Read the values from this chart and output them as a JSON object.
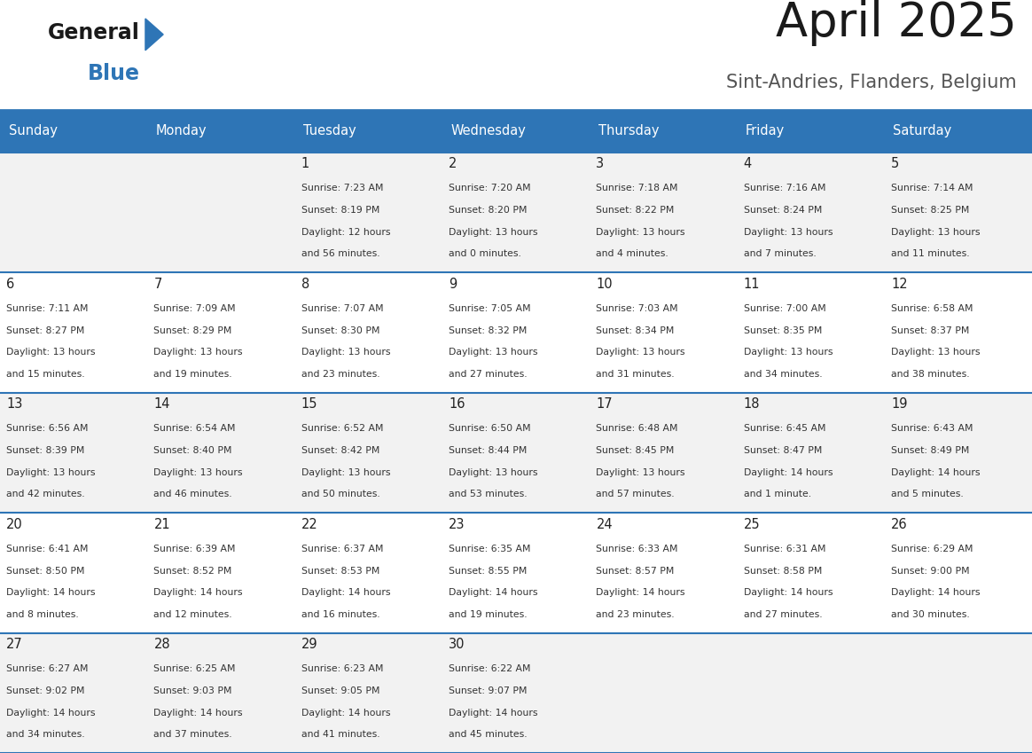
{
  "title": "April 2025",
  "subtitle": "Sint-Andries, Flanders, Belgium",
  "header_bg": "#2E75B6",
  "header_text": "#FFFFFF",
  "cell_bg_odd": "#F2F2F2",
  "cell_bg_even": "#FFFFFF",
  "border_color": "#2E75B6",
  "text_color": "#333333",
  "day_num_color": "#222222",
  "day_headers": [
    "Sunday",
    "Monday",
    "Tuesday",
    "Wednesday",
    "Thursday",
    "Friday",
    "Saturday"
  ],
  "weeks": [
    [
      {
        "day": "",
        "info": ""
      },
      {
        "day": "",
        "info": ""
      },
      {
        "day": "1",
        "sunrise": "Sunrise: 7:23 AM",
        "sunset": "Sunset: 8:19 PM",
        "daylight": "Daylight: 12 hours",
        "daylight2": "and 56 minutes."
      },
      {
        "day": "2",
        "sunrise": "Sunrise: 7:20 AM",
        "sunset": "Sunset: 8:20 PM",
        "daylight": "Daylight: 13 hours",
        "daylight2": "and 0 minutes."
      },
      {
        "day": "3",
        "sunrise": "Sunrise: 7:18 AM",
        "sunset": "Sunset: 8:22 PM",
        "daylight": "Daylight: 13 hours",
        "daylight2": "and 4 minutes."
      },
      {
        "day": "4",
        "sunrise": "Sunrise: 7:16 AM",
        "sunset": "Sunset: 8:24 PM",
        "daylight": "Daylight: 13 hours",
        "daylight2": "and 7 minutes."
      },
      {
        "day": "5",
        "sunrise": "Sunrise: 7:14 AM",
        "sunset": "Sunset: 8:25 PM",
        "daylight": "Daylight: 13 hours",
        "daylight2": "and 11 minutes."
      }
    ],
    [
      {
        "day": "6",
        "sunrise": "Sunrise: 7:11 AM",
        "sunset": "Sunset: 8:27 PM",
        "daylight": "Daylight: 13 hours",
        "daylight2": "and 15 minutes."
      },
      {
        "day": "7",
        "sunrise": "Sunrise: 7:09 AM",
        "sunset": "Sunset: 8:29 PM",
        "daylight": "Daylight: 13 hours",
        "daylight2": "and 19 minutes."
      },
      {
        "day": "8",
        "sunrise": "Sunrise: 7:07 AM",
        "sunset": "Sunset: 8:30 PM",
        "daylight": "Daylight: 13 hours",
        "daylight2": "and 23 minutes."
      },
      {
        "day": "9",
        "sunrise": "Sunrise: 7:05 AM",
        "sunset": "Sunset: 8:32 PM",
        "daylight": "Daylight: 13 hours",
        "daylight2": "and 27 minutes."
      },
      {
        "day": "10",
        "sunrise": "Sunrise: 7:03 AM",
        "sunset": "Sunset: 8:34 PM",
        "daylight": "Daylight: 13 hours",
        "daylight2": "and 31 minutes."
      },
      {
        "day": "11",
        "sunrise": "Sunrise: 7:00 AM",
        "sunset": "Sunset: 8:35 PM",
        "daylight": "Daylight: 13 hours",
        "daylight2": "and 34 minutes."
      },
      {
        "day": "12",
        "sunrise": "Sunrise: 6:58 AM",
        "sunset": "Sunset: 8:37 PM",
        "daylight": "Daylight: 13 hours",
        "daylight2": "and 38 minutes."
      }
    ],
    [
      {
        "day": "13",
        "sunrise": "Sunrise: 6:56 AM",
        "sunset": "Sunset: 8:39 PM",
        "daylight": "Daylight: 13 hours",
        "daylight2": "and 42 minutes."
      },
      {
        "day": "14",
        "sunrise": "Sunrise: 6:54 AM",
        "sunset": "Sunset: 8:40 PM",
        "daylight": "Daylight: 13 hours",
        "daylight2": "and 46 minutes."
      },
      {
        "day": "15",
        "sunrise": "Sunrise: 6:52 AM",
        "sunset": "Sunset: 8:42 PM",
        "daylight": "Daylight: 13 hours",
        "daylight2": "and 50 minutes."
      },
      {
        "day": "16",
        "sunrise": "Sunrise: 6:50 AM",
        "sunset": "Sunset: 8:44 PM",
        "daylight": "Daylight: 13 hours",
        "daylight2": "and 53 minutes."
      },
      {
        "day": "17",
        "sunrise": "Sunrise: 6:48 AM",
        "sunset": "Sunset: 8:45 PM",
        "daylight": "Daylight: 13 hours",
        "daylight2": "and 57 minutes."
      },
      {
        "day": "18",
        "sunrise": "Sunrise: 6:45 AM",
        "sunset": "Sunset: 8:47 PM",
        "daylight": "Daylight: 14 hours",
        "daylight2": "and 1 minute."
      },
      {
        "day": "19",
        "sunrise": "Sunrise: 6:43 AM",
        "sunset": "Sunset: 8:49 PM",
        "daylight": "Daylight: 14 hours",
        "daylight2": "and 5 minutes."
      }
    ],
    [
      {
        "day": "20",
        "sunrise": "Sunrise: 6:41 AM",
        "sunset": "Sunset: 8:50 PM",
        "daylight": "Daylight: 14 hours",
        "daylight2": "and 8 minutes."
      },
      {
        "day": "21",
        "sunrise": "Sunrise: 6:39 AM",
        "sunset": "Sunset: 8:52 PM",
        "daylight": "Daylight: 14 hours",
        "daylight2": "and 12 minutes."
      },
      {
        "day": "22",
        "sunrise": "Sunrise: 6:37 AM",
        "sunset": "Sunset: 8:53 PM",
        "daylight": "Daylight: 14 hours",
        "daylight2": "and 16 minutes."
      },
      {
        "day": "23",
        "sunrise": "Sunrise: 6:35 AM",
        "sunset": "Sunset: 8:55 PM",
        "daylight": "Daylight: 14 hours",
        "daylight2": "and 19 minutes."
      },
      {
        "day": "24",
        "sunrise": "Sunrise: 6:33 AM",
        "sunset": "Sunset: 8:57 PM",
        "daylight": "Daylight: 14 hours",
        "daylight2": "and 23 minutes."
      },
      {
        "day": "25",
        "sunrise": "Sunrise: 6:31 AM",
        "sunset": "Sunset: 8:58 PM",
        "daylight": "Daylight: 14 hours",
        "daylight2": "and 27 minutes."
      },
      {
        "day": "26",
        "sunrise": "Sunrise: 6:29 AM",
        "sunset": "Sunset: 9:00 PM",
        "daylight": "Daylight: 14 hours",
        "daylight2": "and 30 minutes."
      }
    ],
    [
      {
        "day": "27",
        "sunrise": "Sunrise: 6:27 AM",
        "sunset": "Sunset: 9:02 PM",
        "daylight": "Daylight: 14 hours",
        "daylight2": "and 34 minutes."
      },
      {
        "day": "28",
        "sunrise": "Sunrise: 6:25 AM",
        "sunset": "Sunset: 9:03 PM",
        "daylight": "Daylight: 14 hours",
        "daylight2": "and 37 minutes."
      },
      {
        "day": "29",
        "sunrise": "Sunrise: 6:23 AM",
        "sunset": "Sunset: 9:05 PM",
        "daylight": "Daylight: 14 hours",
        "daylight2": "and 41 minutes."
      },
      {
        "day": "30",
        "sunrise": "Sunrise: 6:22 AM",
        "sunset": "Sunset: 9:07 PM",
        "daylight": "Daylight: 14 hours",
        "daylight2": "and 45 minutes."
      },
      {
        "day": "",
        "sunrise": "",
        "sunset": "",
        "daylight": "",
        "daylight2": ""
      },
      {
        "day": "",
        "sunrise": "",
        "sunset": "",
        "daylight": "",
        "daylight2": ""
      },
      {
        "day": "",
        "sunrise": "",
        "sunset": "",
        "daylight": "",
        "daylight2": ""
      }
    ]
  ],
  "logo_general_color": "#1a1a1a",
  "logo_blue_color": "#2E75B6",
  "logo_triangle_color": "#2E75B6"
}
